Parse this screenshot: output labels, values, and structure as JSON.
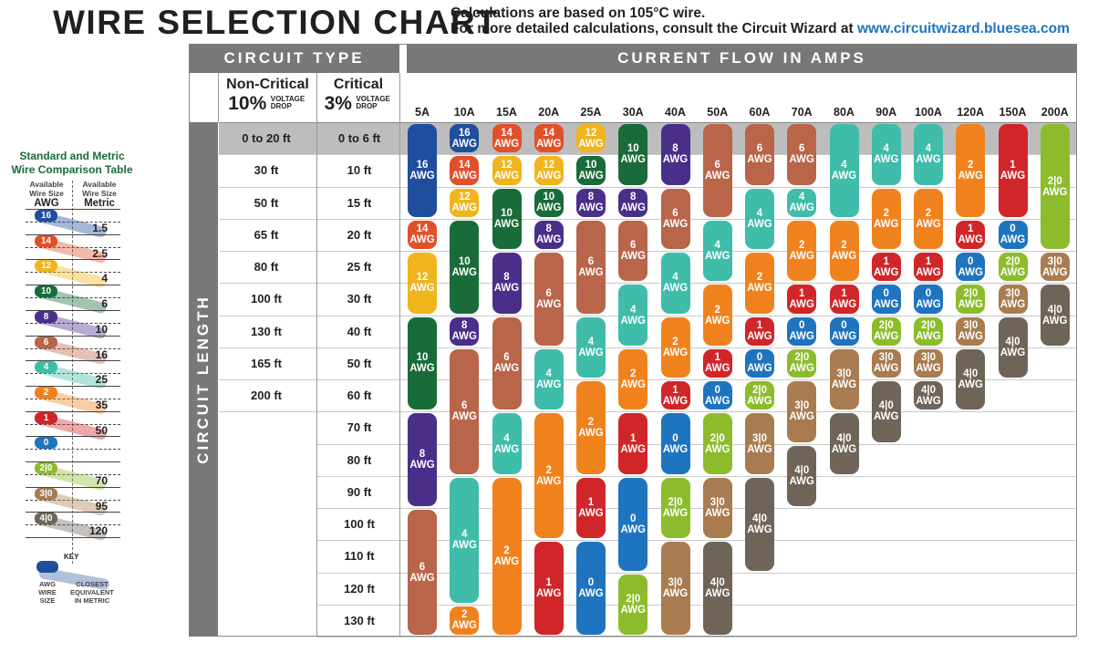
{
  "header": {
    "title": "WIRE SELECTION CHART",
    "note1": "Calculations are based on 105°C wire.",
    "note2": "For more detailed calculations, consult the Circuit Wizard at ",
    "link": "www.circuitwizard.bluesea.com"
  },
  "chart_data": {
    "type": "table",
    "title": "WIRE SELECTION CHART",
    "circuit_type_label": "CIRCUIT TYPE",
    "current_label": "CURRENT FLOW IN AMPS",
    "length_label": "CIRCUIT LENGTH",
    "non_critical": {
      "name": "Non-Critical",
      "pct": "10%",
      "drop": "VOLTAGE DROP"
    },
    "critical": {
      "name": "Critical",
      "pct": "3%",
      "drop": "VOLTAGE DROP"
    },
    "amps": [
      "5A",
      "10A",
      "15A",
      "20A",
      "25A",
      "30A",
      "40A",
      "50A",
      "60A",
      "70A",
      "80A",
      "90A",
      "100A",
      "120A",
      "150A",
      "200A"
    ],
    "lengths_non_critical": [
      "0 to 20 ft",
      "30 ft",
      "50 ft",
      "65 ft",
      "80 ft",
      "100 ft",
      "130 ft",
      "165 ft",
      "200 ft"
    ],
    "lengths_critical": [
      "0 to 6 ft",
      "10 ft",
      "15 ft",
      "20 ft",
      "25 ft",
      "30 ft",
      "40 ft",
      "50 ft",
      "60 ft",
      "70 ft",
      "80 ft",
      "90 ft",
      "100 ft",
      "110 ft",
      "120 ft",
      "130 ft"
    ],
    "unit": "AWG",
    "columns": [
      [
        [
          "16",
          0,
          2
        ],
        [
          "14",
          3,
          3
        ],
        [
          "12",
          4,
          5
        ],
        [
          "10",
          6,
          8
        ],
        [
          "8",
          9,
          11
        ],
        [
          "6",
          12,
          15
        ]
      ],
      [
        [
          "16",
          0,
          0
        ],
        [
          "14",
          1,
          1
        ],
        [
          "12",
          2,
          2
        ],
        [
          "10",
          3,
          5
        ],
        [
          "8",
          6,
          6
        ],
        [
          "6",
          7,
          10
        ],
        [
          "4",
          11,
          14
        ],
        [
          "2",
          15,
          15
        ]
      ],
      [
        [
          "14",
          0,
          0
        ],
        [
          "12",
          1,
          1
        ],
        [
          "10",
          2,
          3
        ],
        [
          "8",
          4,
          5
        ],
        [
          "6",
          6,
          8
        ],
        [
          "4",
          9,
          10
        ],
        [
          "2",
          11,
          15
        ]
      ],
      [
        [
          "14",
          0,
          0
        ],
        [
          "12",
          1,
          1
        ],
        [
          "10",
          2,
          2
        ],
        [
          "8",
          3,
          3
        ],
        [
          "6",
          4,
          6
        ],
        [
          "4",
          7,
          8
        ],
        [
          "2",
          9,
          12
        ],
        [
          "1",
          13,
          15
        ]
      ],
      [
        [
          "12",
          0,
          0
        ],
        [
          "10",
          1,
          1
        ],
        [
          "8",
          2,
          2
        ],
        [
          "6",
          3,
          5
        ],
        [
          "4",
          6,
          7
        ],
        [
          "2",
          8,
          10
        ],
        [
          "1",
          11,
          12
        ],
        [
          "0",
          13,
          15
        ]
      ],
      [
        [
          "10",
          0,
          1
        ],
        [
          "8",
          2,
          2
        ],
        [
          "6",
          3,
          4
        ],
        [
          "4",
          5,
          6
        ],
        [
          "2",
          7,
          8
        ],
        [
          "1",
          9,
          10
        ],
        [
          "0",
          11,
          13
        ],
        [
          "2|0",
          14,
          15
        ]
      ],
      [
        [
          "8",
          0,
          1
        ],
        [
          "6",
          2,
          3
        ],
        [
          "4",
          4,
          5
        ],
        [
          "2",
          6,
          7
        ],
        [
          "1",
          8,
          8
        ],
        [
          "0",
          9,
          10
        ],
        [
          "2|0",
          11,
          12
        ],
        [
          "3|0",
          13,
          15
        ]
      ],
      [
        [
          "6",
          0,
          2
        ],
        [
          "4",
          3,
          4
        ],
        [
          "2",
          5,
          6
        ],
        [
          "1",
          7,
          7
        ],
        [
          "0",
          8,
          8
        ],
        [
          "2|0",
          9,
          10
        ],
        [
          "3|0",
          11,
          12
        ],
        [
          "4|0",
          13,
          15
        ]
      ],
      [
        [
          "6",
          0,
          1
        ],
        [
          "4",
          2,
          3
        ],
        [
          "2",
          4,
          5
        ],
        [
          "1",
          6,
          6
        ],
        [
          "0",
          7,
          7
        ],
        [
          "2|0",
          8,
          8
        ],
        [
          "3|0",
          9,
          10
        ],
        [
          "4|0",
          11,
          13
        ]
      ],
      [
        [
          "6",
          0,
          1
        ],
        [
          "4",
          2,
          2
        ],
        [
          "2",
          3,
          4
        ],
        [
          "1",
          5,
          5
        ],
        [
          "0",
          6,
          6
        ],
        [
          "2|0",
          7,
          7
        ],
        [
          "3|0",
          8,
          9
        ],
        [
          "4|0",
          10,
          11
        ]
      ],
      [
        [
          "4",
          0,
          2
        ],
        [
          "2",
          3,
          4
        ],
        [
          "1",
          5,
          5
        ],
        [
          "0",
          6,
          6
        ],
        [
          "3|0",
          7,
          8
        ],
        [
          "4|0",
          9,
          10
        ]
      ],
      [
        [
          "4",
          0,
          1
        ],
        [
          "2",
          2,
          3
        ],
        [
          "1",
          4,
          4
        ],
        [
          "0",
          5,
          5
        ],
        [
          "2|0",
          6,
          6
        ],
        [
          "3|0",
          7,
          7
        ],
        [
          "4|0",
          8,
          9
        ]
      ],
      [
        [
          "4",
          0,
          1
        ],
        [
          "2",
          2,
          3
        ],
        [
          "1",
          4,
          4
        ],
        [
          "0",
          5,
          5
        ],
        [
          "2|0",
          6,
          6
        ],
        [
          "3|0",
          7,
          7
        ],
        [
          "4|0",
          8,
          8
        ]
      ],
      [
        [
          "2",
          0,
          2
        ],
        [
          "1",
          3,
          3
        ],
        [
          "0",
          4,
          4
        ],
        [
          "2|0",
          5,
          5
        ],
        [
          "3|0",
          6,
          6
        ],
        [
          "4|0",
          7,
          8
        ]
      ],
      [
        [
          "1",
          0,
          2
        ],
        [
          "0",
          3,
          3
        ],
        [
          "2|0",
          4,
          4
        ],
        [
          "3|0",
          5,
          5
        ],
        [
          "4|0",
          6,
          7
        ]
      ],
      [
        [
          "2|0",
          0,
          3
        ],
        [
          "3|0",
          4,
          4
        ],
        [
          "4|0",
          5,
          6
        ]
      ]
    ],
    "colors": {
      "16": "#1f4e9c",
      "14": "#e2502a",
      "12": "#f0b41c",
      "10": "#1a6b3a",
      "8": "#4a2f8a",
      "6": "#b8654a",
      "4": "#3fbcaa",
      "2": "#f0821e",
      "1": "#d0262a",
      "0": "#1f74bf",
      "2|0": "#8cbc2c",
      "3|0": "#a87c50",
      "4|0": "#6e6458"
    },
    "highlight_row_color": "#bdbdbd"
  },
  "comparison": {
    "title1": "Standard and Metric",
    "title2": "Wire Comparison Table",
    "awg_head": "Available Wire Size",
    "awg_label": "AWG",
    "metric_head": "Available Wire Size",
    "metric_label": "Metric",
    "rows": [
      [
        "16",
        "1.5"
      ],
      [
        "14",
        "2.5"
      ],
      [
        "12",
        "4"
      ],
      [
        "10",
        "6"
      ],
      [
        "8",
        "10"
      ],
      [
        "6",
        "16"
      ],
      [
        "4",
        "25"
      ],
      [
        "2",
        "35"
      ],
      [
        "1",
        "50"
      ],
      [
        "0",
        ""
      ],
      [
        "2|0",
        "70"
      ],
      [
        "3|0",
        "95"
      ],
      [
        "4|0",
        "120"
      ]
    ],
    "key_label": "KEY",
    "key_awg": "AWG WIRE SIZE",
    "key_metric": "CLOSEST EQUIVALENT IN METRIC"
  }
}
